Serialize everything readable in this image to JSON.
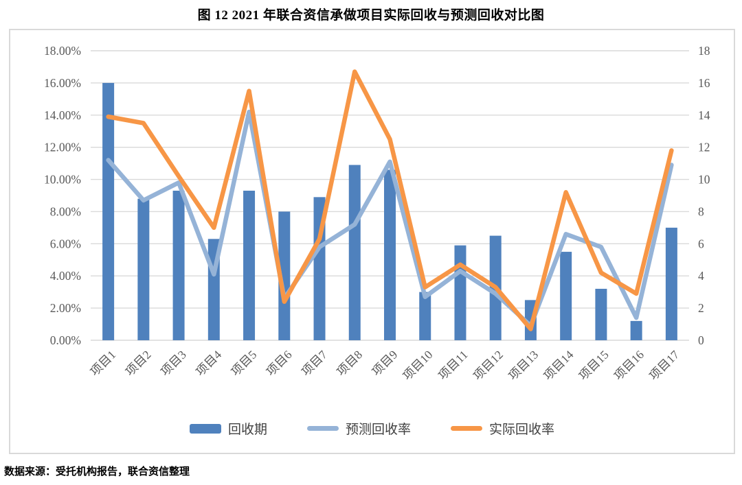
{
  "page_title": "图 12  2021 年联合资信承做项目实际回收与预测回收对比图",
  "footer_note": "数据来源：受托机构报告，联合资信整理",
  "colors": {
    "bar": "#4F81BD",
    "forecast_line": "#95B3D7",
    "actual_line": "#F79646",
    "gridline": "#D9D9D9",
    "axis_text": "#595959",
    "chart_border": "#D9D9D9",
    "title_text": "#000000"
  },
  "legend": {
    "items": [
      {
        "label": "回收期",
        "type": "bar",
        "color": "#4F81BD"
      },
      {
        "label": "预测回收率",
        "type": "line",
        "color": "#95B3D7"
      },
      {
        "label": "实际回收率",
        "type": "line",
        "color": "#F79646"
      }
    ]
  },
  "chart_data": {
    "type": "combo-bar-line",
    "title": "图 12  2021 年联合资信承做项目实际回收与预测回收对比图",
    "categories": [
      "项目1",
      "项目2",
      "项目3",
      "项目4",
      "项目5",
      "项目6",
      "项目7",
      "项目8",
      "项目9",
      "项目10",
      "项目11",
      "项目12",
      "项目13",
      "项目14",
      "项目15",
      "项目16",
      "项目17"
    ],
    "series": [
      {
        "name": "回收期",
        "chart_type": "bar",
        "axis": "right",
        "values": [
          16.0,
          8.8,
          9.3,
          6.3,
          9.3,
          8.0,
          8.9,
          10.9,
          10.6,
          3.0,
          5.9,
          6.5,
          2.5,
          5.5,
          3.2,
          1.2,
          7.0
        ]
      },
      {
        "name": "预测回收率",
        "chart_type": "line",
        "axis": "left",
        "unit": "%",
        "values": [
          11.2,
          8.7,
          9.8,
          4.1,
          14.2,
          2.6,
          5.8,
          7.2,
          11.1,
          2.7,
          4.3,
          2.9,
          0.9,
          6.6,
          5.8,
          1.4,
          10.9
        ]
      },
      {
        "name": "实际回收率",
        "chart_type": "line",
        "axis": "left",
        "unit": "%",
        "values": [
          13.9,
          13.5,
          10.2,
          7.0,
          15.5,
          2.4,
          6.3,
          16.7,
          12.5,
          3.3,
          4.7,
          3.3,
          0.7,
          9.2,
          4.2,
          2.9,
          11.8
        ]
      }
    ],
    "left_axis": {
      "min": 0,
      "max": 18,
      "tick_labels": [
        "18.00%",
        "16.00%",
        "14.00%",
        "12.00%",
        "10.00%",
        "8.00%",
        "6.00%",
        "4.00%",
        "2.00%",
        "0.00%"
      ]
    },
    "right_axis": {
      "min": 0,
      "max": 18,
      "tick_labels": [
        "18",
        "16",
        "14",
        "12",
        "10",
        "8",
        "6",
        "4",
        "2",
        "0"
      ]
    },
    "grid": true,
    "legend_position": "bottom"
  }
}
